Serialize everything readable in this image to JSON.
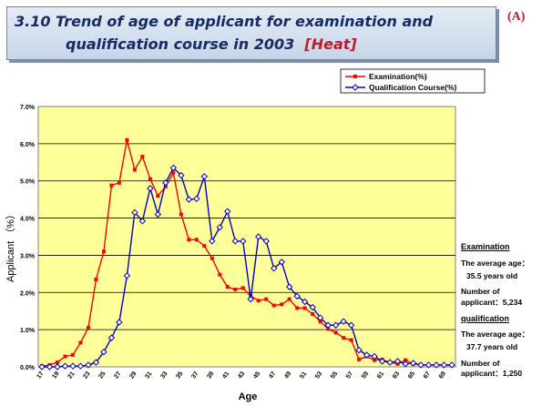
{
  "header": {
    "title_line1": "3.10    Trend of age of applicant for examination and",
    "title_line2": "qualification course in 2003",
    "title_tag": "[Heat]",
    "corner_label": "(A)"
  },
  "colors": {
    "examination": "#ff0000",
    "qualification": "#0000cc",
    "plot_bg": "#ffff99"
  },
  "chart_data": {
    "type": "line",
    "xlabel": "Age",
    "ylabel": "Applicant （%）",
    "ylim": [
      0,
      7
    ],
    "yticks": [
      "0.0%",
      "1.0%",
      "2.0%",
      "3.0%",
      "4.0%",
      "5.0%",
      "6.0%",
      "7.0%"
    ],
    "grid": true,
    "legend_position": "top-right",
    "x": [
      17,
      18,
      19,
      20,
      21,
      22,
      23,
      24,
      25,
      26,
      27,
      28,
      29,
      30,
      31,
      32,
      33,
      34,
      35,
      36,
      37,
      38,
      39,
      40,
      41,
      42,
      43,
      44,
      45,
      46,
      47,
      48,
      49,
      50,
      51,
      52,
      53,
      54,
      55,
      56,
      57,
      58,
      59,
      60,
      61,
      62,
      63,
      64,
      65,
      66,
      67,
      68,
      69,
      70
    ],
    "x_tick_labels": [
      "17",
      "19",
      "21",
      "23",
      "25",
      "27",
      "29",
      "31",
      "33",
      "35",
      "37",
      "39",
      "41",
      "43",
      "45",
      "47",
      "49",
      "51",
      "53",
      "55",
      "57",
      "59",
      "61",
      "63",
      "65",
      "67",
      "69"
    ],
    "series": [
      {
        "name": "Examination(%)",
        "marker": "square",
        "values": [
          0.02,
          0.05,
          0.12,
          0.28,
          0.32,
          0.65,
          1.05,
          2.35,
          3.1,
          4.88,
          4.95,
          6.1,
          5.3,
          5.65,
          5.05,
          4.6,
          4.85,
          5.22,
          4.1,
          3.42,
          3.42,
          3.25,
          2.92,
          2.48,
          2.15,
          2.08,
          2.12,
          1.9,
          1.78,
          1.82,
          1.65,
          1.68,
          1.82,
          1.58,
          1.58,
          1.42,
          1.22,
          1.02,
          0.92,
          0.78,
          0.72,
          0.2,
          0.28,
          0.18,
          0.2,
          0.12,
          0.08,
          0.18,
          0.08,
          0.06,
          0.05,
          0.06,
          0.05,
          0.04
        ]
      },
      {
        "name": "Qualification Course(%)",
        "marker": "diamond",
        "values": [
          0.0,
          0.0,
          0.0,
          0.02,
          0.02,
          0.02,
          0.05,
          0.12,
          0.4,
          0.78,
          1.2,
          2.45,
          4.15,
          3.92,
          4.8,
          4.1,
          4.95,
          5.35,
          5.15,
          4.5,
          4.52,
          5.12,
          3.38,
          3.75,
          4.18,
          3.38,
          3.38,
          1.82,
          3.5,
          3.38,
          2.65,
          2.82,
          2.15,
          1.9,
          1.75,
          1.6,
          1.32,
          1.12,
          1.12,
          1.22,
          1.12,
          0.45,
          0.32,
          0.28,
          0.15,
          0.12,
          0.15,
          0.08,
          0.1,
          0.05,
          0.05,
          0.05,
          0.05,
          0.05
        ]
      }
    ]
  },
  "stats": {
    "exam_heading": "Examination",
    "exam_avg_label": "The average age：",
    "exam_avg_value": "35.5 years old",
    "exam_num_label": "Number of",
    "exam_num_value": "applicant：5,234",
    "qual_heading": "qualification",
    "qual_avg_label": "The average age：",
    "qual_avg_value": "37.7 years old",
    "qual_num_label": "Number of",
    "qual_num_value": "applicant：1,250"
  }
}
